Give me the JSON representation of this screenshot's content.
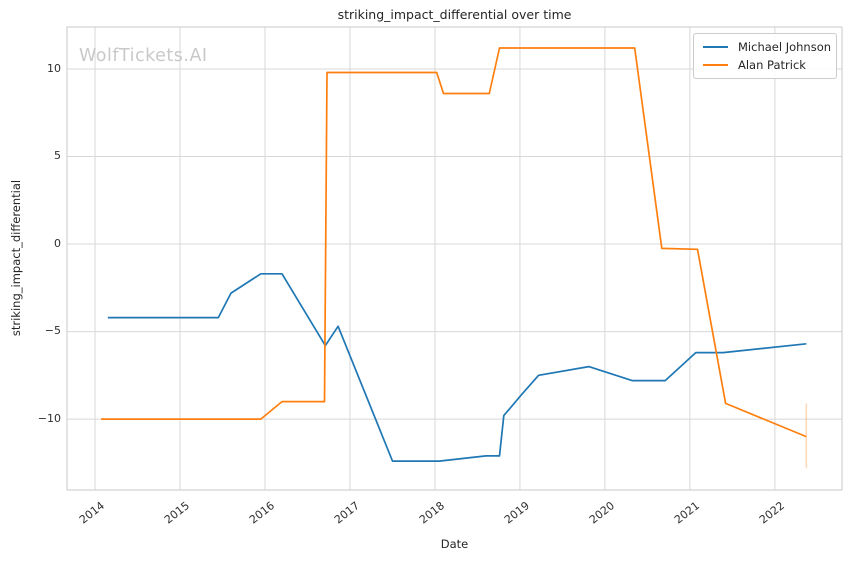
{
  "chart_data": {
    "type": "line",
    "title": "striking_impact_differential over time",
    "xlabel": "Date",
    "ylabel": "striking_impact_differential",
    "watermark": "WolfTickets.AI",
    "x_ticks": [
      2014,
      2015,
      2016,
      2017,
      2018,
      2019,
      2020,
      2021,
      2022
    ],
    "y_ticks": [
      10,
      5,
      0,
      -5,
      -10
    ],
    "xlim": [
      2013.67,
      2022.79
    ],
    "ylim": [
      -14.05,
      12.4
    ],
    "grid": true,
    "legend_position": "upper right",
    "colors": {
      "grid": "#d8d8d8",
      "spine": "#c9c9c9",
      "text": "#262626",
      "watermark": "#c9c9c9",
      "michael_johnson": "#1f77b4",
      "alan_patrick": "#ff7f0e"
    },
    "series": [
      {
        "name": "Michael Johnson",
        "color": "#1f77b4",
        "points": [
          [
            2014.15,
            -4.2
          ],
          [
            2015.45,
            -4.2
          ],
          [
            2015.6,
            -2.8
          ],
          [
            2015.95,
            -1.7
          ],
          [
            2016.2,
            -1.7
          ],
          [
            2016.71,
            -5.8
          ],
          [
            2016.86,
            -4.7
          ],
          [
            2017.5,
            -12.4
          ],
          [
            2018.05,
            -12.4
          ],
          [
            2018.6,
            -12.1
          ],
          [
            2018.76,
            -12.1
          ],
          [
            2018.81,
            -9.8
          ],
          [
            2019.02,
            -8.6
          ],
          [
            2019.22,
            -7.5
          ],
          [
            2019.81,
            -7.0
          ],
          [
            2020.32,
            -7.8
          ],
          [
            2020.71,
            -7.8
          ],
          [
            2021.07,
            -6.2
          ],
          [
            2021.39,
            -6.2
          ],
          [
            2022.37,
            -5.7
          ]
        ]
      },
      {
        "name": "Alan Patrick",
        "color": "#ff7f0e",
        "points": [
          [
            2014.07,
            -10.0
          ],
          [
            2015.95,
            -10.0
          ],
          [
            2016.2,
            -9.0
          ],
          [
            2016.7,
            -9.0
          ],
          [
            2016.73,
            9.8
          ],
          [
            2018.02,
            9.8
          ],
          [
            2018.1,
            8.6
          ],
          [
            2018.64,
            8.6
          ],
          [
            2018.76,
            11.2
          ],
          [
            2020.35,
            11.2
          ],
          [
            2020.67,
            -0.25
          ],
          [
            2021.09,
            -0.3
          ],
          [
            2021.42,
            -9.1
          ],
          [
            2022.37,
            -11.0
          ]
        ]
      }
    ],
    "annotations": [
      {
        "type": "error-bar",
        "x": 2022.37,
        "y_from": -9.1,
        "y_to": -12.8,
        "color": "#ff7f0e",
        "opacity": 0.3
      }
    ]
  }
}
